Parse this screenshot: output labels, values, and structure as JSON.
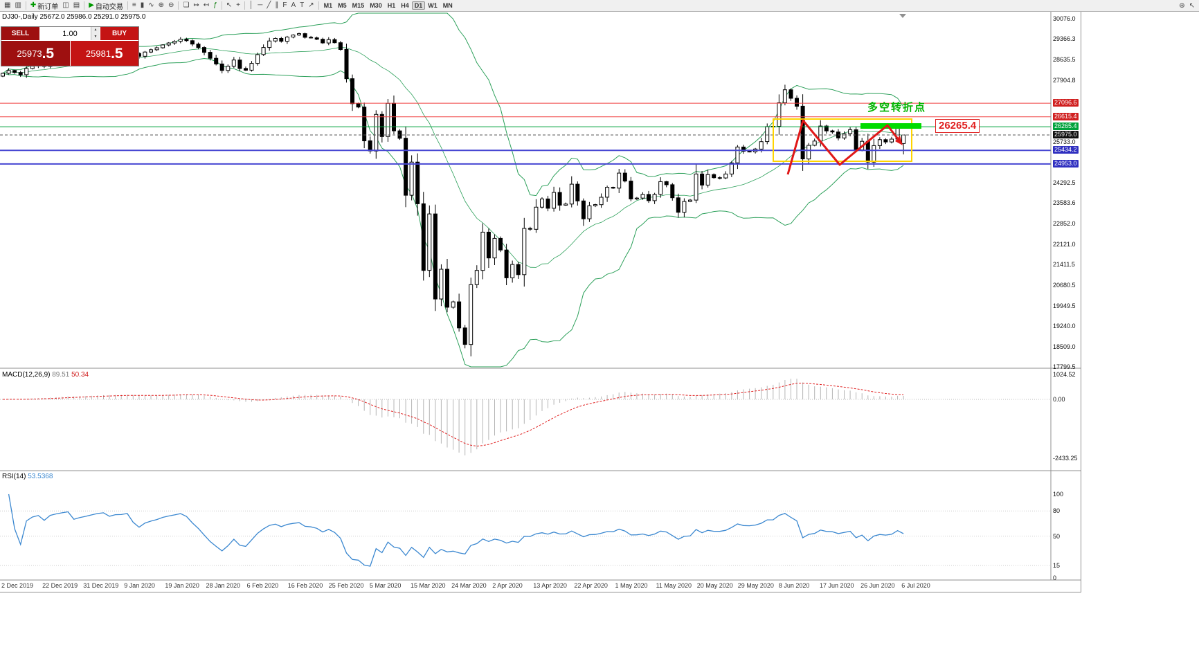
{
  "toolbar": {
    "items": [
      {
        "t": "icon",
        "name": "new-chart-icon",
        "g": "▦"
      },
      {
        "t": "icon",
        "name": "profiles-icon",
        "g": "▥"
      },
      {
        "t": "sep"
      },
      {
        "t": "btn",
        "name": "new-order-button",
        "g": "✚",
        "gc": "#009900",
        "label": "新订单"
      },
      {
        "t": "icon",
        "name": "chart-windows-icon",
        "g": "◫"
      },
      {
        "t": "icon",
        "name": "market-watch-icon",
        "g": "▤"
      },
      {
        "t": "sep"
      },
      {
        "t": "btn",
        "name": "autotrading-button",
        "g": "▶",
        "gc": "#009900",
        "label": "自动交易"
      },
      {
        "t": "sep"
      },
      {
        "t": "icon",
        "name": "bar-chart-type-icon",
        "g": "≡"
      },
      {
        "t": "icon",
        "name": "candlestick-chart-type-icon",
        "g": "▮"
      },
      {
        "t": "icon",
        "name": "line-chart-type-icon",
        "g": "∿"
      },
      {
        "t": "icon",
        "name": "zoom-in-icon",
        "g": "⊕"
      },
      {
        "t": "icon",
        "name": "zoom-out-icon",
        "g": "⊖"
      },
      {
        "t": "sep"
      },
      {
        "t": "icon",
        "name": "tile-windows-icon",
        "g": "❏"
      },
      {
        "t": "icon",
        "name": "autoscroll-icon",
        "g": "↦"
      },
      {
        "t": "icon",
        "name": "chart-shift-icon",
        "g": "↤"
      },
      {
        "t": "icon",
        "name": "indicators-icon",
        "g": "ƒ",
        "gc": "#007700"
      },
      {
        "t": "sep"
      },
      {
        "t": "icon",
        "name": "cursor-icon",
        "g": "↖"
      },
      {
        "t": "icon",
        "name": "crosshair-icon",
        "g": "+"
      },
      {
        "t": "sep"
      },
      {
        "t": "icon",
        "name": "vertical-line-icon",
        "g": "│"
      },
      {
        "t": "icon",
        "name": "horizontal-line-icon",
        "g": "─"
      },
      {
        "t": "icon",
        "name": "trendline-icon",
        "g": "╱"
      },
      {
        "t": "icon",
        "name": "channel-icon",
        "g": "∥"
      },
      {
        "t": "icon",
        "name": "fibonacci-icon",
        "g": "F"
      },
      {
        "t": "icon",
        "name": "text-icon",
        "g": "A"
      },
      {
        "t": "icon",
        "name": "text-label-icon",
        "g": "T"
      },
      {
        "t": "icon",
        "name": "arrows-icon",
        "g": "↗"
      },
      {
        "t": "sep"
      }
    ],
    "timeframes": [
      "M1",
      "M5",
      "M15",
      "M30",
      "H1",
      "H4",
      "D1",
      "W1",
      "MN"
    ],
    "active_timeframe": "D1",
    "right_icons": [
      {
        "name": "search-plus-icon",
        "g": "⊕"
      },
      {
        "name": "select-pointer-icon",
        "g": "↖"
      }
    ]
  },
  "chart": {
    "header": "DJ30-,Daily 25672.0 25986.0 25291.0 25975.0",
    "order_panel": {
      "sell_label": "SELL",
      "buy_label": "BUY",
      "volume": "1.00",
      "vol_up_glyph": "▲",
      "vol_down_glyph": "▼",
      "sell_price_main": "25973",
      "sell_price_pips": ".5",
      "buy_price_main": "25981",
      "buy_price_pips": ".5"
    },
    "axis": {
      "grid_labels": [
        "30076.0",
        "29366.3",
        "28635.5",
        "27904.8",
        "25733.0",
        "24292.5",
        "23583.6",
        "22852.0",
        "22121.0",
        "21411.5",
        "20680.5",
        "19949.5",
        "19240.0",
        "18509.0",
        "17799.5"
      ],
      "price_levels": [
        {
          "label": "27096.6",
          "value": 27096.6,
          "color": "#f04040",
          "chip": "#d02020",
          "width": 1,
          "dash": ""
        },
        {
          "label": "26615.4",
          "value": 26615.4,
          "color": "#f04040",
          "chip": "#d02020",
          "width": 1,
          "dash": ""
        },
        {
          "label": "26265.4",
          "value": 26265.4,
          "color": "#00a23c",
          "chip": "#00a23c",
          "width": 1,
          "dash": ""
        },
        {
          "label": "25975.0",
          "value": 25975.0,
          "color": "#555555",
          "chip": "#101010",
          "width": 1,
          "dash": "4,3"
        },
        {
          "label": "25434.2",
          "value": 25434.2,
          "color": "#4646d2",
          "chip": "#3030c0",
          "width": 2,
          "dash": ""
        },
        {
          "label": "24953.0",
          "value": 24953.0,
          "color": "#4646d2",
          "chip": "#3030c0",
          "width": 2,
          "dash": ""
        }
      ]
    },
    "annotations": {
      "turning_point_text": "多空转折点",
      "price_label": "26265.4"
    }
  },
  "macd": {
    "name": "MACD(12,26,9)",
    "main_value": "89.51",
    "signal_value": "50.34",
    "axis": [
      "1024.52",
      "0.00",
      "-2433.25"
    ]
  },
  "rsi": {
    "name": "RSI(14)",
    "value": "53.5368",
    "axis": [
      "100",
      "80",
      "50",
      "15",
      "0"
    ],
    "levels": [
      80,
      50,
      15
    ]
  },
  "chart_data": {
    "type": "candlestick",
    "symbol": "DJ30-",
    "period": "Daily",
    "ohlc_header": {
      "open": 25672.0,
      "high": 25986.0,
      "low": 25291.0,
      "close": 25975.0
    },
    "closes": [
      28150,
      28250,
      28180,
      28100,
      28320,
      28400,
      28440,
      28390,
      28540,
      28600,
      28650,
      28700,
      28580,
      28660,
      28720,
      28800,
      28880,
      28920,
      28860,
      28940,
      28950,
      29000,
      28850,
      28750,
      28900,
      28980,
      29050,
      29150,
      29220,
      29280,
      29350,
      29300,
      29180,
      29060,
      28890,
      28680,
      28480,
      28250,
      28400,
      28620,
      28320,
      28260,
      28500,
      28810,
      29060,
      29290,
      29380,
      29280,
      29430,
      29500,
      29550,
      29420,
      29400,
      29350,
      29220,
      29340,
      29230,
      28990,
      27960,
      27080,
      26960,
      25770,
      25410,
      26700,
      25920,
      27090,
      26120,
      25860,
      23850,
      25020,
      23550,
      21200,
      23190,
      20190,
      21240,
      19900,
      20090,
      19170,
      18590,
      20700,
      21200,
      22550,
      21640,
      22330,
      21920,
      20940,
      21410,
      21050,
      22680,
      22650,
      23430,
      23720,
      23390,
      23950,
      23500,
      23540,
      24240,
      23650,
      23020,
      23480,
      23520,
      23780,
      24130,
      24100,
      24630,
      24350,
      23720,
      23750,
      23880,
      23660,
      23880,
      24330,
      24220,
      23760,
      23250,
      23630,
      23680,
      24600,
      24210,
      24580,
      24470,
      24460,
      24600,
      24990,
      25550,
      25400,
      25380,
      25480,
      25740,
      26270,
      26280,
      27110,
      27570,
      27270,
      26990,
      25130,
      25610,
      25760,
      26290,
      26120,
      26080,
      25870,
      26020,
      26160,
      25450,
      25750,
      25020,
      25600,
      25810,
      25730,
      25830,
      26290,
      25975
    ],
    "bollinger": {
      "period": 20,
      "deviation": 2
    },
    "macd": {
      "fast": 12,
      "slow": 26,
      "signal": 9,
      "current_main": 89.51,
      "current_signal": 50.34
    },
    "rsi": {
      "period": 14,
      "current": 53.5368
    },
    "horizontal_levels": {
      "resistance": [
        27096.6,
        26615.4
      ],
      "turning_point": 26265.4,
      "current_price": 25975.0,
      "support": [
        25434.2,
        24953.0
      ]
    },
    "y_gridlines": [
      30076.0,
      29366.3,
      28635.5,
      27904.8,
      25733.0,
      24292.5,
      23583.6,
      22852.0,
      22121.0,
      21411.5,
      20680.5,
      19949.5,
      19240.0,
      18509.0,
      17799.5
    ],
    "macd_axis": [
      1024.52,
      0.0,
      -2433.25
    ],
    "rsi_axis": [
      100,
      80,
      50,
      15,
      0
    ],
    "x_labels": [
      "2 Dec 2019",
      "22 Dec 2019",
      "31 Dec 2019",
      "9 Jan 2020",
      "19 Jan 2020",
      "28 Jan 2020",
      "6 Feb 2020",
      "16 Feb 2020",
      "25 Feb 2020",
      "5 Mar 2020",
      "15 Mar 2020",
      "24 Mar 2020",
      "2 Apr 2020",
      "13 Apr 2020",
      "22 Apr 2020",
      "1 May 2020",
      "11 May 2020",
      "20 May 2020",
      "29 May 2020",
      "8 Jun 2020",
      "17 Jun 2020",
      "26 Jun 2020",
      "6 Jul 2020"
    ]
  }
}
